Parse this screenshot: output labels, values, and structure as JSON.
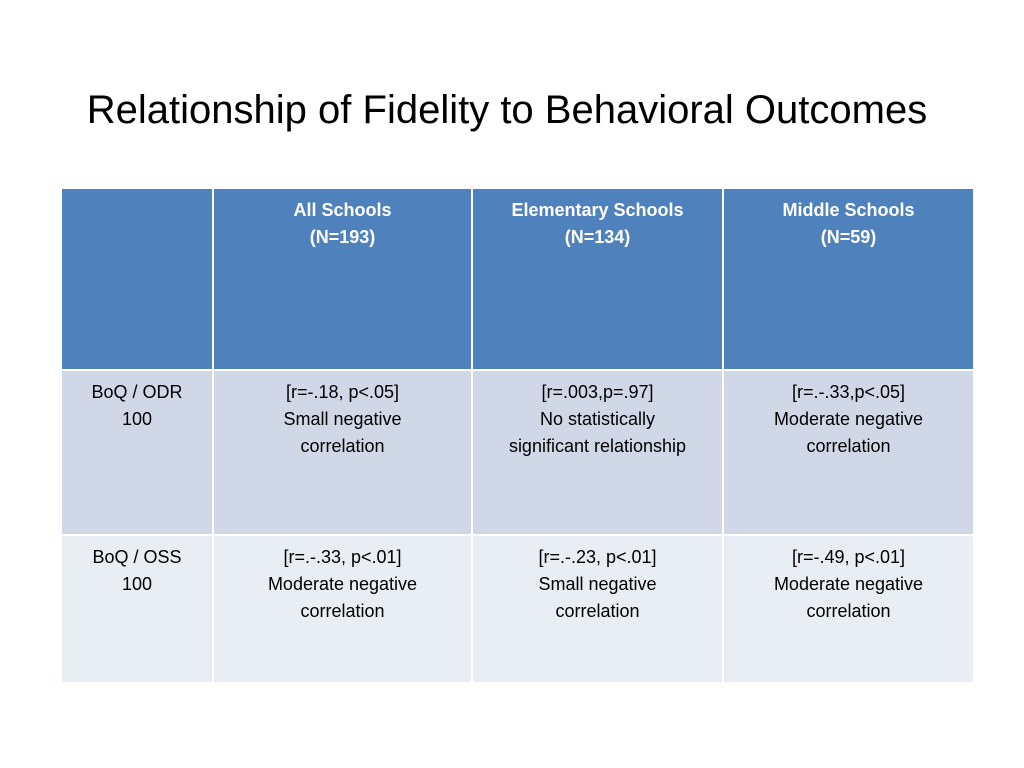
{
  "title": "Relationship of Fidelity to Behavioral Outcomes",
  "table": {
    "columns": [
      {
        "line1": "",
        "line2": ""
      },
      {
        "line1": "All Schools",
        "line2": "(N=193)"
      },
      {
        "line1": "Elementary Schools",
        "line2": "(N=134)"
      },
      {
        "line1": "Middle Schools",
        "line2": "(N=59)"
      }
    ],
    "rows": [
      {
        "label": {
          "line1": "BoQ / ODR",
          "line2": "100"
        },
        "cells": [
          {
            "line1": "[r=-.18, p<.05]",
            "line2": "Small negative",
            "line3": "correlation"
          },
          {
            "line1": "[r=.003,p=.97]",
            "line2": "No statistically",
            "line3": "significant relationship"
          },
          {
            "line1": "[r=.-.33,p<.05]",
            "line2": "Moderate negative",
            "line3": "correlation"
          }
        ]
      },
      {
        "label": {
          "line1": "BoQ / OSS",
          "line2": "100"
        },
        "cells": [
          {
            "line1": "[r=.-.33, p<.01]",
            "line2": "Moderate negative",
            "line3": "correlation"
          },
          {
            "line1": "[r=.-.23, p<.01]",
            "line2": "Small negative",
            "line3": "correlation"
          },
          {
            "line1": "[r=-.49, p<.01]",
            "line2": "Moderate negative",
            "line3": "correlation"
          }
        ]
      }
    ]
  },
  "colors": {
    "header_bg": "#4f81bd",
    "row_odd_bg": "#d0d8e8",
    "row_even_bg": "#e9edf4",
    "header_text": "#ffffff"
  }
}
